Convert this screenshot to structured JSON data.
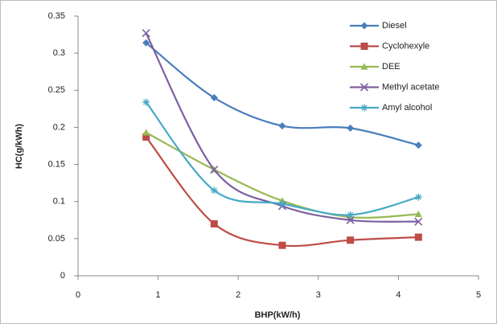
{
  "chart_data": {
    "type": "line",
    "x_label": "BHP(kW/h)",
    "y_label": "HC(g/kWh)",
    "x": [
      0.85,
      1.7,
      2.55,
      3.4,
      4.25
    ],
    "series": [
      {
        "name": "Diesel",
        "color": "#4a7ebb",
        "marker": "diamond",
        "values": [
          0.314,
          0.24,
          0.202,
          0.199,
          0.176
        ]
      },
      {
        "name": "Cyclohexyle",
        "color": "#be4b48",
        "marker": "square",
        "values": [
          0.187,
          0.07,
          0.041,
          0.048,
          0.052
        ]
      },
      {
        "name": "DEE",
        "color": "#98b954",
        "marker": "triangle",
        "values": [
          0.193,
          0.143,
          0.101,
          0.079,
          0.083
        ]
      },
      {
        "name": "Methyl acetate",
        "color": "#7d60a0",
        "marker": "cross",
        "values": [
          0.327,
          0.143,
          0.094,
          0.075,
          0.073
        ]
      },
      {
        "name": "Amyl alcohol",
        "color": "#46aac5",
        "marker": "star",
        "values": [
          0.234,
          0.115,
          0.097,
          0.082,
          0.106
        ]
      }
    ],
    "xlim": [
      0,
      5
    ],
    "xticks": [
      0,
      1,
      2,
      3,
      4,
      5
    ],
    "ylim": [
      0,
      0.35
    ],
    "yticks": [
      0,
      0.05,
      0.1,
      0.15,
      0.2,
      0.25,
      0.3,
      0.35
    ],
    "smooth": true,
    "legend": "top-right"
  }
}
